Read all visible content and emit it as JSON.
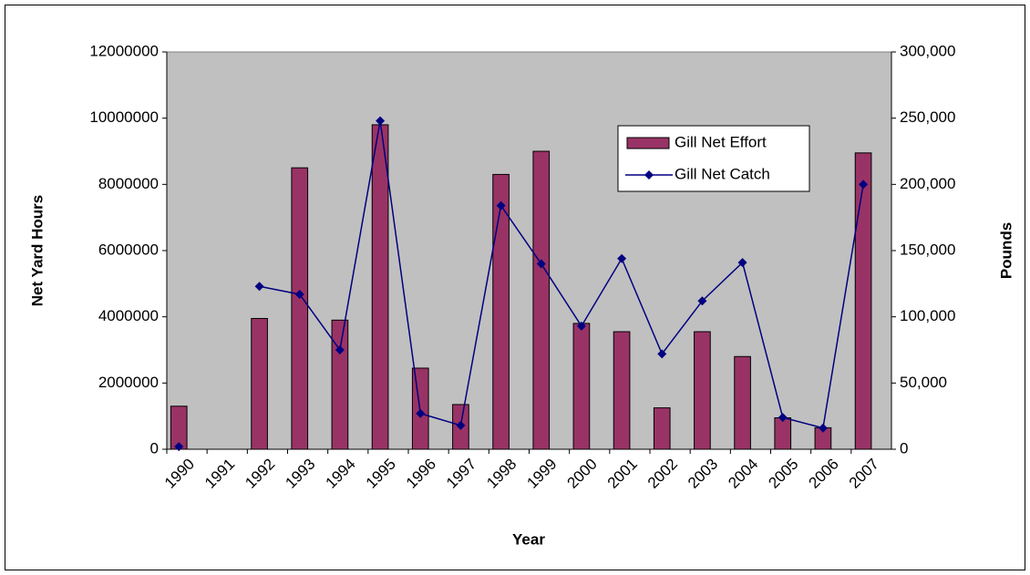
{
  "chart_data": {
    "type": "bar_line",
    "x_label": "Year",
    "y_label": "Net Yard Hours",
    "y2_label": "Pounds",
    "categories": [
      "1990",
      "1991",
      "1992",
      "1993",
      "1994",
      "1995",
      "1996",
      "1997",
      "1998",
      "1999",
      "2000",
      "2001",
      "2002",
      "2003",
      "2004",
      "2005",
      "2006",
      "2007"
    ],
    "series": [
      {
        "name": "Gill Net Effort",
        "type": "bar",
        "color": "#993366",
        "values": [
          1300000,
          null,
          3950000,
          8500000,
          3900000,
          9800000,
          2450000,
          1350000,
          8300000,
          9000000,
          3800000,
          3550000,
          1250000,
          3550000,
          2800000,
          950000,
          650000,
          8950000
        ]
      },
      {
        "name": "Gill Net Catch",
        "type": "line",
        "axis": "y2",
        "color": "#000080",
        "values": [
          2000,
          null,
          123000,
          117000,
          75000,
          248000,
          27000,
          18000,
          184000,
          140000,
          93000,
          144000,
          72000,
          112000,
          141000,
          24000,
          16000,
          200000
        ]
      }
    ],
    "ylim": [
      0,
      12000000
    ],
    "yticks": [
      0,
      2000000,
      4000000,
      6000000,
      8000000,
      10000000,
      12000000
    ],
    "y2lim": [
      0,
      300000
    ],
    "y2ticks": [
      {
        "value": 0,
        "label": "0"
      },
      {
        "value": 50000,
        "label": "50,000"
      },
      {
        "value": 100000,
        "label": "100,000"
      },
      {
        "value": 150000,
        "label": "150,000"
      },
      {
        "value": 200000,
        "label": "200,000"
      },
      {
        "value": 250000,
        "label": "250,000"
      },
      {
        "value": 300000,
        "label": "300,000"
      }
    ],
    "plot_background": "#c0c0c0",
    "grid": false
  }
}
